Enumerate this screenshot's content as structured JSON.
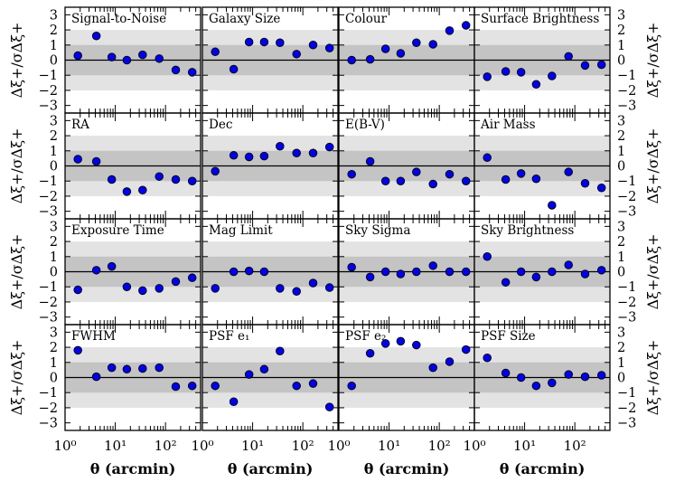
{
  "chart_data": {
    "type": "scatter",
    "grid": false,
    "xlabel": "θ (arcmin)",
    "ylabel": "Δξ+/σΔξ+",
    "xscale": "log",
    "xlim": [
      1,
      500
    ],
    "ylim": [
      -3.5,
      3.5
    ],
    "x_tick_labels": [
      "10⁰",
      "10¹",
      "10²"
    ],
    "y_tick_labels": [
      "3",
      "2",
      "1",
      "0",
      "−1",
      "−2",
      "−3"
    ],
    "band_1sigma": [
      -1,
      1
    ],
    "band_2sigma": [
      -2,
      2
    ],
    "colors": {
      "marker": "#0000ee",
      "marker_edge": "#000000",
      "inner_band": "#c4c4c4",
      "outer_band": "#e3e3e3"
    },
    "x": [
      1.8,
      4.2,
      8.5,
      17,
      35,
      75,
      160,
      340
    ],
    "panels": [
      {
        "label": "Signal-to-Noise",
        "y": [
          0.3,
          1.6,
          0.2,
          0.0,
          0.35,
          0.1,
          -0.65,
          -0.8
        ]
      },
      {
        "label": "Galaxy Size",
        "y": [
          0.55,
          -0.6,
          1.2,
          1.2,
          1.15,
          0.4,
          1.0,
          0.8
        ]
      },
      {
        "label": "Colour",
        "y": [
          0.0,
          0.05,
          0.75,
          0.45,
          1.15,
          1.05,
          1.95,
          2.3
        ]
      },
      {
        "label": "Surface Brightness",
        "y": [
          -1.1,
          -0.75,
          -0.8,
          -1.6,
          -1.05,
          0.25,
          -0.35,
          -0.3
        ]
      },
      {
        "label": "RA",
        "y": [
          0.45,
          0.3,
          -0.9,
          -1.7,
          -1.6,
          -0.7,
          -0.9,
          -1.0
        ]
      },
      {
        "label": "Dec",
        "y": [
          -0.35,
          0.7,
          0.6,
          0.65,
          1.3,
          0.85,
          0.85,
          1.25
        ]
      },
      {
        "label": "E(B-V)",
        "y": [
          -0.55,
          0.3,
          -1.0,
          -1.0,
          -0.4,
          -1.2,
          -0.55,
          -1.0
        ]
      },
      {
        "label": "Air Mass",
        "y": [
          0.55,
          -0.9,
          -0.5,
          -0.85,
          -2.6,
          -0.4,
          -1.15,
          -1.45
        ]
      },
      {
        "label": "Exposure Time",
        "y": [
          -1.2,
          0.1,
          0.35,
          -1.0,
          -1.25,
          -1.1,
          -0.65,
          -0.4
        ]
      },
      {
        "label": "Mag Limit",
        "y": [
          -1.1,
          0.0,
          0.05,
          0.0,
          -1.1,
          -1.3,
          -0.75,
          -1.05
        ]
      },
      {
        "label": "Sky Sigma",
        "y": [
          0.3,
          -0.35,
          0.0,
          -0.15,
          0.0,
          0.4,
          0.0,
          0.0
        ]
      },
      {
        "label": "Sky Brightness",
        "y": [
          1.0,
          -0.7,
          0.0,
          -0.35,
          0.0,
          0.45,
          -0.15,
          0.1
        ]
      },
      {
        "label": "FWHM",
        "y": [
          1.8,
          0.05,
          0.65,
          0.55,
          0.6,
          0.65,
          -0.6,
          -0.55
        ]
      },
      {
        "label": "PSF e₁",
        "y": [
          -0.55,
          -1.6,
          0.2,
          0.55,
          1.75,
          -0.55,
          -0.4,
          -1.95
        ]
      },
      {
        "label": "PSF e₂",
        "y": [
          -0.55,
          1.6,
          2.25,
          2.4,
          2.15,
          0.65,
          1.05,
          1.85
        ]
      },
      {
        "label": "PSF Size",
        "y": [
          1.3,
          0.3,
          0.0,
          -0.55,
          -0.35,
          0.2,
          0.05,
          0.15
        ]
      }
    ]
  }
}
